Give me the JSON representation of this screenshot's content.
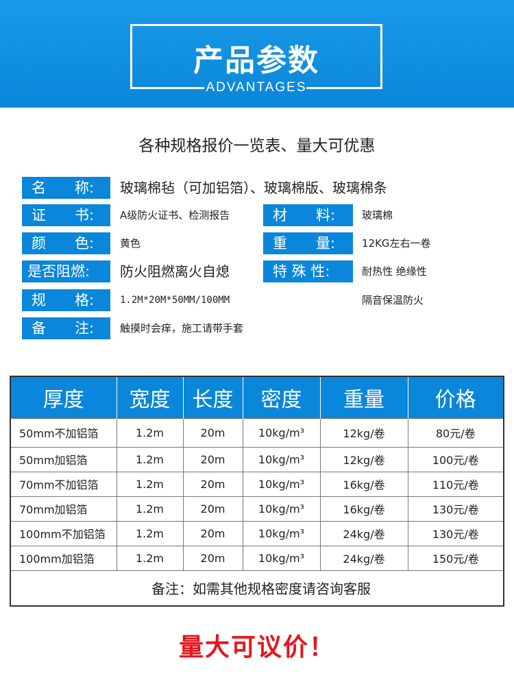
{
  "header": {
    "title": "产品参数",
    "subtitle": "ADVANTAGES"
  },
  "tagline": "各种规格报价一览表、量大可优惠",
  "specs": {
    "name": {
      "label": "名　　称:",
      "value": "玻璃棉毡（可加铝箔）、玻璃棉版、玻璃棉条"
    },
    "cert": {
      "label": "证　　书:",
      "value": "A级防火证书、检测报告"
    },
    "material": {
      "label": "材　　料:",
      "value": "玻璃棉"
    },
    "color": {
      "label": "颜　　色:",
      "value": "黄色"
    },
    "weight": {
      "label": "重　　量:",
      "value": "12KG左右一卷"
    },
    "flame": {
      "label": "是否阻燃:",
      "value": "防火阻燃离火自熄"
    },
    "feature": {
      "label": "特 殊 性:",
      "value": "耐热性 绝缘性",
      "value2": "隔音保温防火"
    },
    "size": {
      "label": "规　　格:",
      "value": "1.2M*20M*50MM/100MM"
    },
    "remark": {
      "label": "备　　注:",
      "value": "触摸时会痒，施工请带手套"
    }
  },
  "table": {
    "headers": [
      "厚度",
      "宽度",
      "长度",
      "密度",
      "重量",
      "价格"
    ],
    "rows": [
      [
        "50mm不加铝箔",
        "1.2m",
        "20m",
        "10kg/m³",
        "12kg/卷",
        "80元/卷"
      ],
      [
        "50mm加铝箔",
        "1.2m",
        "20m",
        "10kg/m³",
        "12kg/卷",
        "100元/卷"
      ],
      [
        "70mm不加铝箔",
        "1.2m",
        "20m",
        "10kg/m³",
        "16kg/卷",
        "110元/卷"
      ],
      [
        "70mm加铝箔",
        "1.2m",
        "20m",
        "10kg/m³",
        "16kg/卷",
        "130元/卷"
      ],
      [
        "100mm不加铝箔",
        "1.2m",
        "20m",
        "10kg/m³",
        "24kg/卷",
        "130元/卷"
      ],
      [
        "100mm加铝箔",
        "1.2m",
        "20m",
        "10kg/m³",
        "24kg/卷",
        "150元/卷"
      ]
    ],
    "note": "备注：如需其他规格密度请咨询客服"
  },
  "promo": "量大可议价！",
  "colors": {
    "brand_blue": "#0a86da",
    "promo_red": "#e8141b"
  }
}
